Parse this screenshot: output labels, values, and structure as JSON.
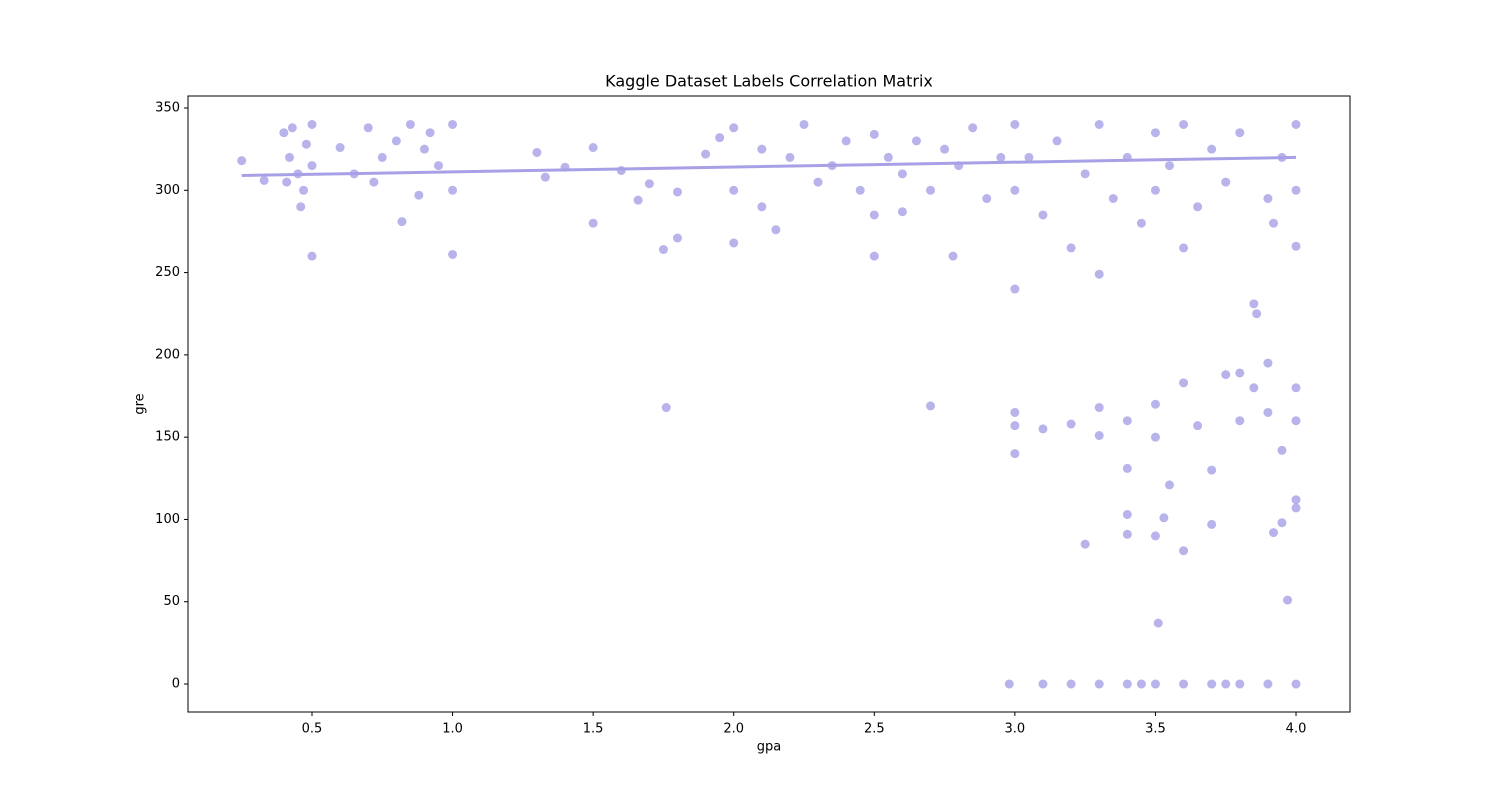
{
  "chart_data": {
    "type": "scatter",
    "title": "Kaggle Dataset Labels Correlation Matrix",
    "x_label": "gpa",
    "y_label": "gre",
    "color": "#a8a0e6",
    "opacity": 0.8,
    "grid": false,
    "xlim": [
      0.059,
      4.192
    ],
    "ylim": [
      -17.0,
      357.3
    ],
    "xticks": [
      0.5,
      {
        "value": 1.0,
        "label": "1.0"
      },
      1.5,
      {
        "value": 2.0,
        "label": "2.0"
      },
      2.5,
      {
        "value": 3.0,
        "label": "3.0"
      },
      3.5,
      {
        "value": 4.0,
        "label": "4.0"
      }
    ],
    "yticks": [
      0,
      50,
      100,
      150,
      200,
      250,
      300,
      350
    ],
    "points": {
      "x": [
        0.4,
        0.42,
        0.45,
        0.48,
        0.5,
        0.41,
        0.47,
        0.5,
        0.43,
        0.46,
        0.6,
        0.7,
        0.75,
        0.8,
        0.85,
        0.9,
        0.95,
        1.0,
        1.0,
        0.82,
        0.88,
        0.72,
        0.92,
        0.65,
        1.0,
        0.5,
        0.25,
        0.33,
        1.3,
        1.33,
        1.4,
        1.5,
        1.5,
        1.6,
        1.66,
        1.7,
        1.75,
        1.76,
        1.8,
        1.8,
        1.9,
        1.95,
        2.0,
        2.0,
        2.0,
        2.1,
        2.1,
        2.15,
        2.2,
        2.25,
        2.3,
        2.35,
        2.4,
        2.45,
        2.5,
        2.5,
        2.5,
        2.55,
        2.6,
        2.65,
        2.7,
        2.7,
        2.75,
        2.8,
        2.78,
        2.85,
        2.9,
        2.95,
        2.6,
        3.0,
        3.0,
        3.0,
        3.05,
        3.1,
        3.15,
        3.2,
        3.25,
        3.3,
        3.3,
        3.35,
        3.4,
        3.45,
        3.5,
        3.5,
        3.55,
        3.6,
        3.6,
        3.65,
        3.7,
        3.75,
        3.8,
        3.85,
        3.86,
        3.9,
        3.95,
        4.0,
        4.0,
        4.0,
        3.92,
        3.0,
        3.0,
        3.0,
        3.1,
        3.2,
        3.3,
        3.3,
        3.4,
        3.4,
        3.5,
        3.5,
        3.55,
        3.6,
        3.65,
        3.7,
        3.75,
        3.8,
        3.8,
        3.85,
        3.9,
        3.9,
        3.95,
        4.0,
        4.0,
        3.92,
        3.25,
        3.4,
        3.4,
        3.5,
        3.53,
        3.6,
        3.7,
        3.95,
        4.0,
        4.0,
        3.97,
        3.51,
        2.98,
        3.1,
        3.2,
        3.3,
        3.4,
        3.5,
        3.6,
        3.7,
        3.8,
        3.9,
        4.0,
        3.45,
        3.75
      ],
      "y": [
        335,
        320,
        310,
        328,
        340,
        305,
        300,
        315,
        338,
        290,
        326,
        338,
        320,
        330,
        340,
        325,
        315,
        340,
        300,
        281,
        297,
        305,
        335,
        310,
        261,
        260,
        318,
        306,
        323,
        308,
        314,
        326,
        280,
        312,
        294,
        304,
        264,
        168,
        299,
        271,
        322,
        332,
        338,
        300,
        268,
        325,
        290,
        276,
        320,
        340,
        305,
        315,
        330,
        300,
        260,
        334,
        285,
        320,
        310,
        330,
        300,
        169,
        325,
        315,
        260,
        338,
        295,
        320,
        287,
        340,
        300,
        240,
        320,
        285,
        330,
        265,
        310,
        249,
        340,
        295,
        320,
        280,
        335,
        300,
        315,
        265,
        340,
        290,
        325,
        305,
        335,
        231,
        225,
        295,
        320,
        340,
        266,
        300,
        280,
        165,
        157,
        140,
        155,
        158,
        168,
        151,
        131,
        160,
        170,
        150,
        121,
        183,
        157,
        130,
        188,
        189,
        160,
        180,
        195,
        165,
        142,
        180,
        160,
        92,
        85,
        103,
        91,
        90,
        101,
        81,
        97,
        98,
        112,
        107,
        51,
        37,
        0,
        0,
        0,
        0,
        0,
        0,
        0,
        0,
        0,
        0,
        0,
        0,
        0
      ]
    },
    "fit": {
      "x": [
        0.25,
        4.0
      ],
      "y": [
        309,
        320
      ]
    }
  }
}
